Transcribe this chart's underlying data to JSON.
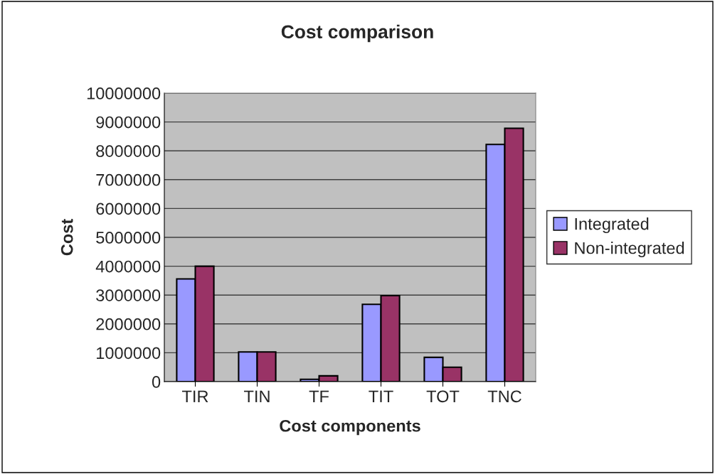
{
  "chart_data": {
    "type": "bar",
    "title": "Cost comparison",
    "xlabel": "Cost components",
    "ylabel": "Cost",
    "categories": [
      "TIR",
      "TIN",
      "TF",
      "TIT",
      "TOT",
      "TNC"
    ],
    "series": [
      {
        "name": "Integrated",
        "color": "#9999ff",
        "values": [
          3560000,
          1030000,
          80000,
          2680000,
          840000,
          8220000
        ]
      },
      {
        "name": "Non-integrated",
        "color": "#993366",
        "values": [
          4000000,
          1030000,
          200000,
          2980000,
          500000,
          8780000
        ]
      }
    ],
    "ylim": [
      0,
      10000000
    ],
    "yticks": [
      0,
      1000000,
      2000000,
      3000000,
      4000000,
      5000000,
      6000000,
      7000000,
      8000000,
      9000000,
      10000000
    ],
    "grid": "y",
    "legend": "right"
  }
}
